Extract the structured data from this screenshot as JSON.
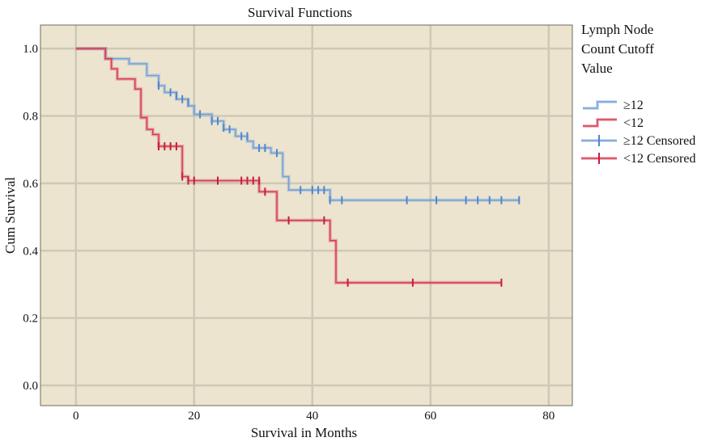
{
  "chart_data": {
    "type": "line",
    "subtype": "kaplan-meier step",
    "title": "Survival Functions",
    "xlabel": "Survival in Months",
    "ylabel": "Cum Survival",
    "xlim": [
      -6,
      84
    ],
    "ylim": [
      -0.06,
      1.07
    ],
    "xticks": [
      "0",
      "20",
      "40",
      "60",
      "80"
    ],
    "yticks": [
      "0.0",
      "0.2",
      "0.4",
      "0.6",
      "0.8",
      "1.0"
    ],
    "grid": true,
    "background": "#ece4cf",
    "legend": {
      "title_lines": [
        "Lymph Node",
        "Count Cutoff",
        "Value"
      ],
      "position": "right",
      "entries": [
        "≥12",
        "<12",
        "≥12 Censored",
        "<12 Censored"
      ]
    },
    "series": [
      {
        "name": "≥12",
        "color": "#6f9fd8",
        "steps": [
          [
            0,
            1.0
          ],
          [
            5,
            0.97
          ],
          [
            9,
            0.955
          ],
          [
            12,
            0.92
          ],
          [
            14,
            0.89
          ],
          [
            15,
            0.87
          ],
          [
            17,
            0.85
          ],
          [
            19,
            0.83
          ],
          [
            20,
            0.805
          ],
          [
            23,
            0.785
          ],
          [
            25,
            0.76
          ],
          [
            27,
            0.74
          ],
          [
            29,
            0.725
          ],
          [
            30,
            0.705
          ],
          [
            33,
            0.69
          ],
          [
            35,
            0.62
          ],
          [
            36,
            0.58
          ],
          [
            43,
            0.55
          ],
          [
            75,
            0.55
          ]
        ],
        "censored": [
          [
            14,
            0.89
          ],
          [
            16,
            0.87
          ],
          [
            17,
            0.86
          ],
          [
            18,
            0.85
          ],
          [
            19,
            0.84
          ],
          [
            21,
            0.805
          ],
          [
            23,
            0.785
          ],
          [
            24,
            0.785
          ],
          [
            25,
            0.765
          ],
          [
            26,
            0.76
          ],
          [
            28,
            0.74
          ],
          [
            29,
            0.74
          ],
          [
            31,
            0.705
          ],
          [
            32,
            0.705
          ],
          [
            34,
            0.69
          ],
          [
            38,
            0.58
          ],
          [
            40,
            0.58
          ],
          [
            41,
            0.58
          ],
          [
            42,
            0.58
          ],
          [
            43,
            0.55
          ],
          [
            45,
            0.55
          ],
          [
            56,
            0.55
          ],
          [
            61,
            0.55
          ],
          [
            66,
            0.55
          ],
          [
            68,
            0.55
          ],
          [
            70,
            0.55
          ],
          [
            72,
            0.55
          ],
          [
            75,
            0.55
          ]
        ]
      },
      {
        "name": "<12",
        "color": "#d8384f",
        "steps": [
          [
            0,
            1.0
          ],
          [
            5,
            0.97
          ],
          [
            6,
            0.94
          ],
          [
            7,
            0.91
          ],
          [
            10,
            0.88
          ],
          [
            11,
            0.795
          ],
          [
            12,
            0.76
          ],
          [
            13,
            0.745
          ],
          [
            14,
            0.71
          ],
          [
            18,
            0.62
          ],
          [
            19,
            0.608
          ],
          [
            31,
            0.575
          ],
          [
            34,
            0.49
          ],
          [
            43,
            0.43
          ],
          [
            44,
            0.305
          ],
          [
            72,
            0.305
          ]
        ],
        "censored": [
          [
            14,
            0.71
          ],
          [
            15,
            0.71
          ],
          [
            16,
            0.71
          ],
          [
            17,
            0.71
          ],
          [
            18,
            0.62
          ],
          [
            19,
            0.608
          ],
          [
            20,
            0.608
          ],
          [
            24,
            0.608
          ],
          [
            28,
            0.608
          ],
          [
            29,
            0.608
          ],
          [
            30,
            0.608
          ],
          [
            31,
            0.608
          ],
          [
            32,
            0.575
          ],
          [
            36,
            0.49
          ],
          [
            42,
            0.49
          ],
          [
            46,
            0.305
          ],
          [
            57,
            0.305
          ],
          [
            72,
            0.305
          ]
        ]
      }
    ]
  }
}
